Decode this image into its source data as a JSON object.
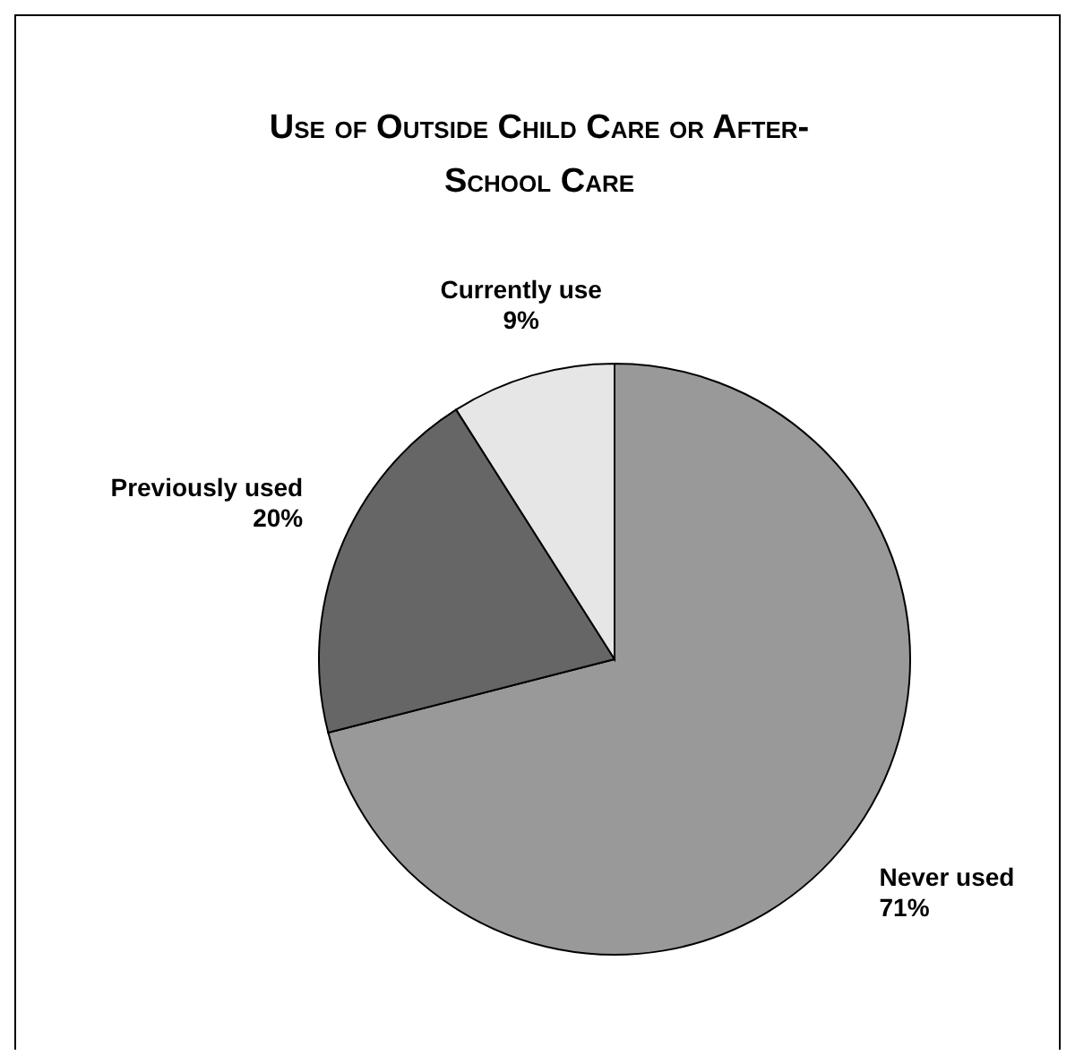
{
  "chart_data": {
    "type": "pie",
    "title": "Use of Outside Child Care or After-School Care",
    "categories": [
      "Never used",
      "Previously used",
      "Currently use"
    ],
    "values": [
      71,
      20,
      9
    ],
    "value_labels": [
      "71%",
      "20%",
      "9%"
    ],
    "colors": [
      "#999999",
      "#666666",
      "#e6e6e6"
    ],
    "legend": false
  }
}
